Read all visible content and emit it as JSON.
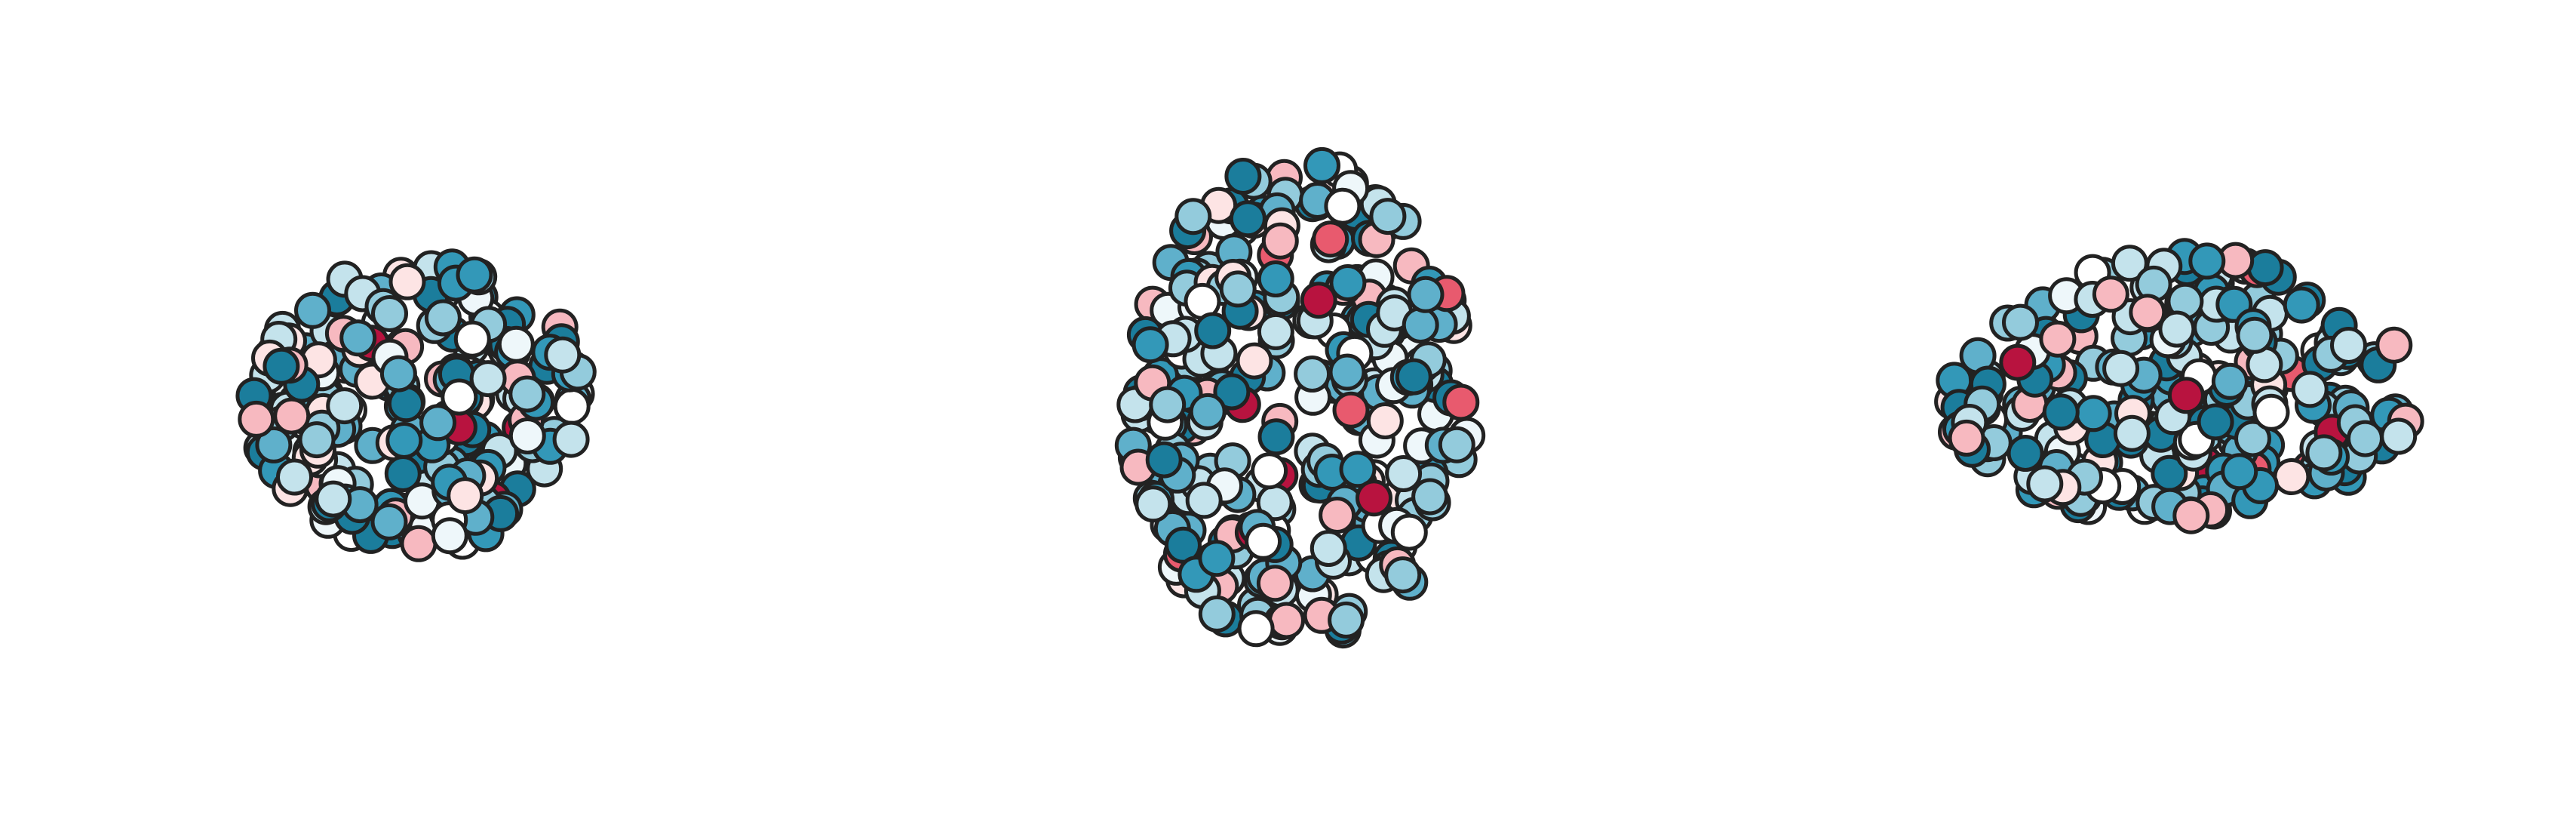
{
  "colormap": [
    "#1b7d9c",
    "#3398b8",
    "#5fb0cb",
    "#93cbdc",
    "#c4e3ec",
    "#eef7fa",
    "#ffffff",
    "#fde4e4",
    "#f7b9c0",
    "#e85a6e",
    "#b8133f"
  ],
  "marker_edge_color": "#222222"
}
